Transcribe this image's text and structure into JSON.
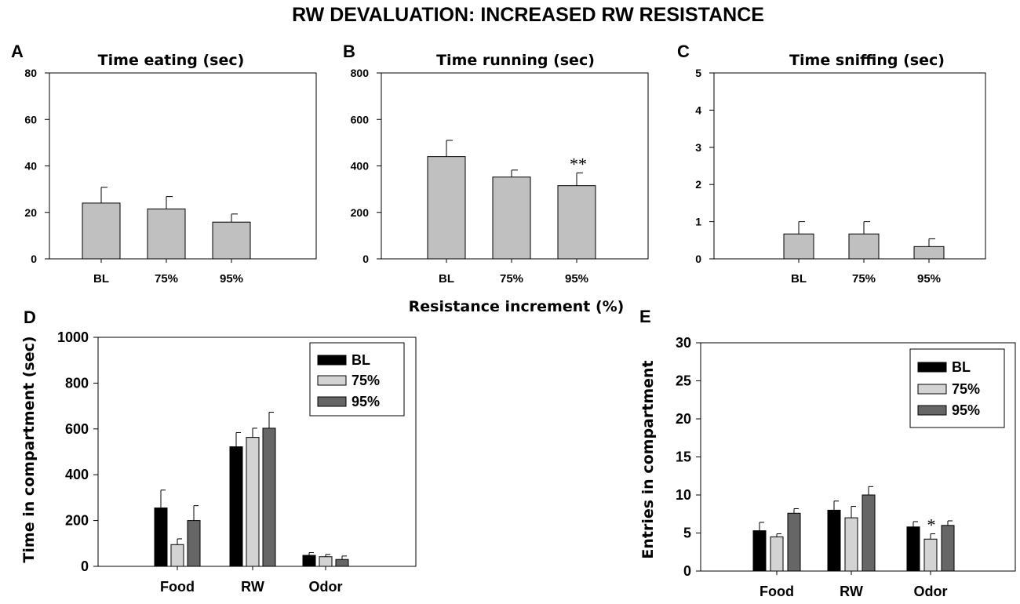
{
  "figure_title": "RW DEVALUATION: INCREASED RW RESISTANCE",
  "shared_xlabel": "Resistance increment (%)",
  "colors": {
    "bar_light": "#c0c0c0",
    "bl": "#000000",
    "pct75": "#d3d3d3",
    "pct95": "#666666",
    "axis": "#000000"
  },
  "chart_data": [
    {
      "id": "A",
      "type": "bar",
      "title": "Time  eating (sec)",
      "categories": [
        "BL",
        "75%",
        "95%"
      ],
      "values": [
        24,
        21.5,
        15.8
      ],
      "errors": [
        6.8,
        5.3,
        3.5
      ],
      "ylim": [
        0,
        80
      ],
      "yticks": [
        "0",
        "20",
        "40",
        "60",
        "80"
      ],
      "ytick_values": [
        0,
        20,
        40,
        60,
        80
      ],
      "annotations": []
    },
    {
      "id": "B",
      "type": "bar",
      "title": "Time running (sec)",
      "categories": [
        "BL",
        "75%",
        "95%"
      ],
      "values": [
        440,
        352,
        315
      ],
      "errors": [
        70,
        30,
        55
      ],
      "ylim": [
        0,
        800
      ],
      "yticks": [
        "0",
        "200",
        "400",
        "600",
        "800"
      ],
      "ytick_values": [
        0,
        200,
        400,
        600,
        800
      ],
      "annotations": [
        {
          "category_index": 2,
          "text": "**"
        }
      ]
    },
    {
      "id": "C",
      "type": "bar",
      "title": "Time sniffing (sec)",
      "categories": [
        "BL",
        "75%",
        "95%"
      ],
      "values": [
        0.67,
        0.67,
        0.33
      ],
      "errors": [
        0.33,
        0.33,
        0.21
      ],
      "ylim": [
        0,
        5
      ],
      "yticks": [
        "0",
        "1",
        "2",
        "3",
        "4",
        "5"
      ],
      "ytick_values": [
        0,
        1,
        2,
        3,
        4,
        5
      ],
      "annotations": []
    },
    {
      "id": "D",
      "type": "bar",
      "ylabel": "Time in compartment (sec)",
      "categories": [
        "Food",
        "RW",
        "Odor"
      ],
      "series": [
        {
          "name": "BL",
          "values": [
            255,
            522,
            48
          ],
          "errors": [
            78,
            62,
            12
          ]
        },
        {
          "name": "75%",
          "values": [
            95,
            563,
            42
          ],
          "errors": [
            25,
            40,
            10
          ]
        },
        {
          "name": "95%",
          "values": [
            200,
            603,
            30
          ],
          "errors": [
            65,
            70,
            15
          ]
        }
      ],
      "ylim": [
        0,
        1000
      ],
      "yticks": [
        "0",
        "200",
        "400",
        "600",
        "800",
        "1000"
      ],
      "ytick_values": [
        0,
        200,
        400,
        600,
        800,
        1000
      ],
      "legend": {
        "position": "top-right",
        "entries": [
          "BL",
          "75%",
          "95%"
        ]
      },
      "annotations": []
    },
    {
      "id": "E",
      "type": "bar",
      "ylabel": "Entries in compartment",
      "categories": [
        "Food",
        "RW",
        "Odor"
      ],
      "series": [
        {
          "name": "BL",
          "values": [
            5.3,
            8.0,
            5.8
          ],
          "errors": [
            1.1,
            1.2,
            0.7
          ]
        },
        {
          "name": "75%",
          "values": [
            4.5,
            7.0,
            4.2
          ],
          "errors": [
            0.4,
            1.5,
            0.7
          ]
        },
        {
          "name": "95%",
          "values": [
            7.6,
            10.0,
            6.0
          ],
          "errors": [
            0.6,
            1.1,
            0.6
          ]
        }
      ],
      "ylim": [
        0,
        30
      ],
      "yticks": [
        "0",
        "5",
        "10",
        "15",
        "20",
        "25",
        "30"
      ],
      "ytick_values": [
        0,
        5,
        10,
        15,
        20,
        25,
        30
      ],
      "legend": {
        "position": "top-right",
        "entries": [
          "BL",
          "75%",
          "95%"
        ]
      },
      "annotations": [
        {
          "category_index": 2,
          "series_index": 1,
          "text": "*"
        }
      ]
    }
  ]
}
